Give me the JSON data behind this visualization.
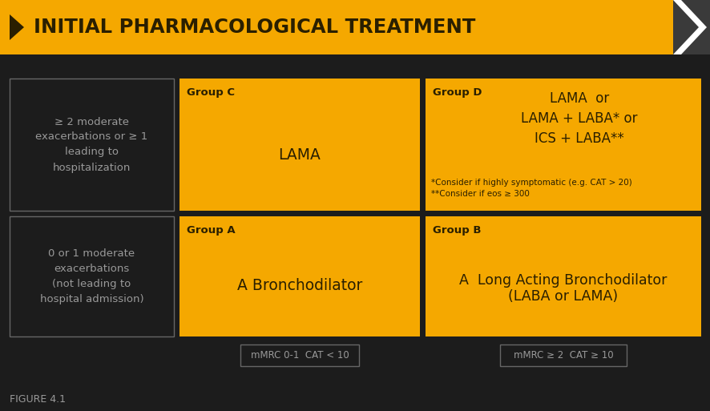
{
  "bg_color": "#1c1c1c",
  "header_color": "#f5a800",
  "header_text": "INITIAL PHARMACOLOGICAL TREATMENT",
  "header_text_color": "#2a1f00",
  "yellow_color": "#f5a800",
  "dark_text": "#2a1f00",
  "gray_text": "#999999",
  "box_border": "#666666",
  "group_c": {
    "label": "Group C",
    "content": "LAMA"
  },
  "group_d": {
    "label": "Group D",
    "content_line1": "LAMA  or",
    "content_line2": "LAMA + LABA* or",
    "content_line3": "ICS + LABA**",
    "footnote1": "*Consider if highly symptomatic (e.g. CAT > 20)",
    "footnote2": "**Consider if eos ≥ 300"
  },
  "group_a": {
    "label": "Group A",
    "content": "A Bronchodilator"
  },
  "group_b": {
    "label": "Group B",
    "content_line1": "A  Long Acting Bronchodilator",
    "content_line2": "(LABA or LAMA)"
  },
  "left_top": "≥ 2 moderate\nexacerbations or ≥ 1\nleading to\nhospitalization",
  "left_bottom": "0 or 1 moderate\nexacerbations\n(not leading to\nhospital admission)",
  "bottom_left_label": "mMRC 0-1  CAT < 10",
  "bottom_right_label": "mMRC ≥ 2  CAT ≥ 10",
  "figure_label": "FIGURE 4.1"
}
